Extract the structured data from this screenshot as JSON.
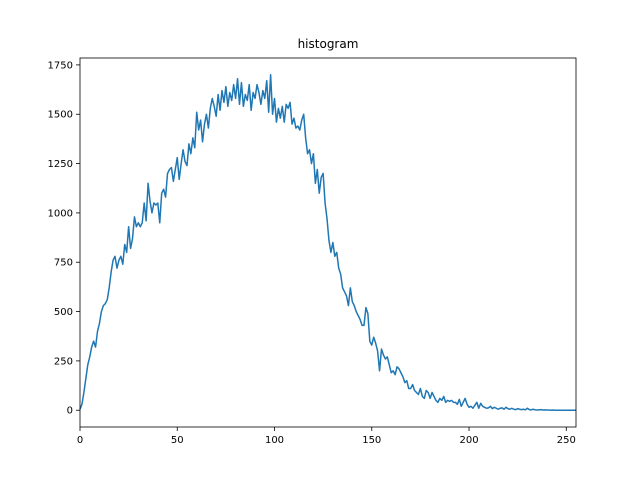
{
  "chart_data": {
    "type": "line",
    "title": "histogram",
    "xlabel": "",
    "ylabel": "",
    "xlim": [
      0,
      255
    ],
    "ylim": [
      -85,
      1785
    ],
    "grid": false,
    "x_ticks": [
      0,
      50,
      100,
      150,
      200,
      250
    ],
    "y_ticks": [
      0,
      250,
      500,
      750,
      1000,
      1250,
      1500,
      1750
    ],
    "series": [
      {
        "color": "#1f77b4",
        "x": [
          0,
          1,
          2,
          3,
          4,
          5,
          6,
          7,
          8,
          9,
          10,
          11,
          12,
          13,
          14,
          15,
          16,
          17,
          18,
          19,
          20,
          21,
          22,
          23,
          24,
          25,
          26,
          27,
          28,
          29,
          30,
          31,
          32,
          33,
          34,
          35,
          36,
          37,
          38,
          39,
          40,
          41,
          42,
          43,
          44,
          45,
          46,
          47,
          48,
          49,
          50,
          51,
          52,
          53,
          54,
          55,
          56,
          57,
          58,
          59,
          60,
          61,
          62,
          63,
          64,
          65,
          66,
          67,
          68,
          69,
          70,
          71,
          72,
          73,
          74,
          75,
          76,
          77,
          78,
          79,
          80,
          81,
          82,
          83,
          84,
          85,
          86,
          87,
          88,
          89,
          90,
          91,
          92,
          93,
          94,
          95,
          96,
          97,
          98,
          99,
          100,
          101,
          102,
          103,
          104,
          105,
          106,
          107,
          108,
          109,
          110,
          111,
          112,
          113,
          114,
          115,
          116,
          117,
          118,
          119,
          120,
          121,
          122,
          123,
          124,
          125,
          126,
          127,
          128,
          129,
          130,
          131,
          132,
          133,
          134,
          135,
          136,
          137,
          138,
          139,
          140,
          141,
          142,
          143,
          144,
          145,
          146,
          147,
          148,
          149,
          150,
          151,
          152,
          153,
          154,
          155,
          156,
          157,
          158,
          159,
          160,
          161,
          162,
          163,
          164,
          165,
          166,
          167,
          168,
          169,
          170,
          171,
          172,
          173,
          174,
          175,
          176,
          177,
          178,
          179,
          180,
          181,
          182,
          183,
          184,
          185,
          186,
          187,
          188,
          189,
          190,
          191,
          192,
          193,
          194,
          195,
          196,
          197,
          198,
          199,
          200,
          201,
          202,
          203,
          204,
          205,
          206,
          207,
          208,
          209,
          210,
          211,
          212,
          213,
          214,
          215,
          216,
          217,
          218,
          219,
          220,
          221,
          222,
          223,
          224,
          225,
          226,
          227,
          228,
          229,
          230,
          231,
          232,
          233,
          234,
          235,
          236,
          237,
          238,
          239,
          240,
          241,
          242,
          243,
          244,
          245,
          246,
          247,
          248,
          249,
          250,
          251,
          252,
          253,
          254,
          255
        ],
        "y": [
          5,
          30,
          90,
          160,
          230,
          270,
          320,
          350,
          320,
          400,
          440,
          500,
          530,
          540,
          560,
          620,
          700,
          760,
          780,
          720,
          760,
          780,
          740,
          840,
          800,
          930,
          820,
          870,
          980,
          930,
          950,
          930,
          950,
          1050,
          960,
          1150,
          1060,
          1000,
          1050,
          1040,
          1050,
          950,
          1100,
          1120,
          1080,
          1200,
          1220,
          1230,
          1160,
          1220,
          1280,
          1170,
          1250,
          1320,
          1260,
          1240,
          1350,
          1300,
          1380,
          1330,
          1510,
          1420,
          1470,
          1360,
          1450,
          1500,
          1430,
          1530,
          1580,
          1540,
          1490,
          1600,
          1520,
          1620,
          1560,
          1640,
          1540,
          1610,
          1570,
          1650,
          1580,
          1680,
          1550,
          1660,
          1540,
          1600,
          1570,
          1650,
          1520,
          1610,
          1580,
          1650,
          1610,
          1550,
          1620,
          1580,
          1670,
          1510,
          1700,
          1500,
          1580,
          1460,
          1530,
          1480,
          1540,
          1460,
          1550,
          1530,
          1560,
          1450,
          1480,
          1430,
          1440,
          1420,
          1470,
          1500,
          1380,
          1300,
          1320,
          1250,
          1300,
          1150,
          1220,
          1100,
          1180,
          1200,
          1050,
          970,
          860,
          800,
          850,
          780,
          800,
          720,
          690,
          620,
          600,
          580,
          530,
          620,
          550,
          530,
          500,
          480,
          460,
          430,
          430,
          520,
          490,
          350,
          330,
          370,
          340,
          300,
          200,
          310,
          280,
          260,
          270,
          230,
          190,
          200,
          180,
          220,
          210,
          190,
          170,
          140,
          150,
          110,
          110,
          130,
          100,
          90,
          80,
          110,
          70,
          60,
          100,
          90,
          60,
          90,
          70,
          50,
          40,
          60,
          50,
          70,
          40,
          50,
          45,
          50,
          40,
          40,
          30,
          55,
          20,
          40,
          60,
          30,
          15,
          20,
          10,
          25,
          40,
          10,
          35,
          20,
          15,
          10,
          12,
          20,
          8,
          15,
          10,
          5,
          10,
          12,
          5,
          15,
          8,
          5,
          10,
          5,
          3,
          8,
          5,
          3,
          5,
          2,
          10,
          3,
          2,
          5,
          2,
          1,
          2,
          3,
          1,
          2,
          1,
          1,
          0,
          1,
          0,
          0,
          0,
          0,
          0,
          0,
          0,
          0,
          0,
          0,
          0,
          0
        ]
      }
    ]
  }
}
